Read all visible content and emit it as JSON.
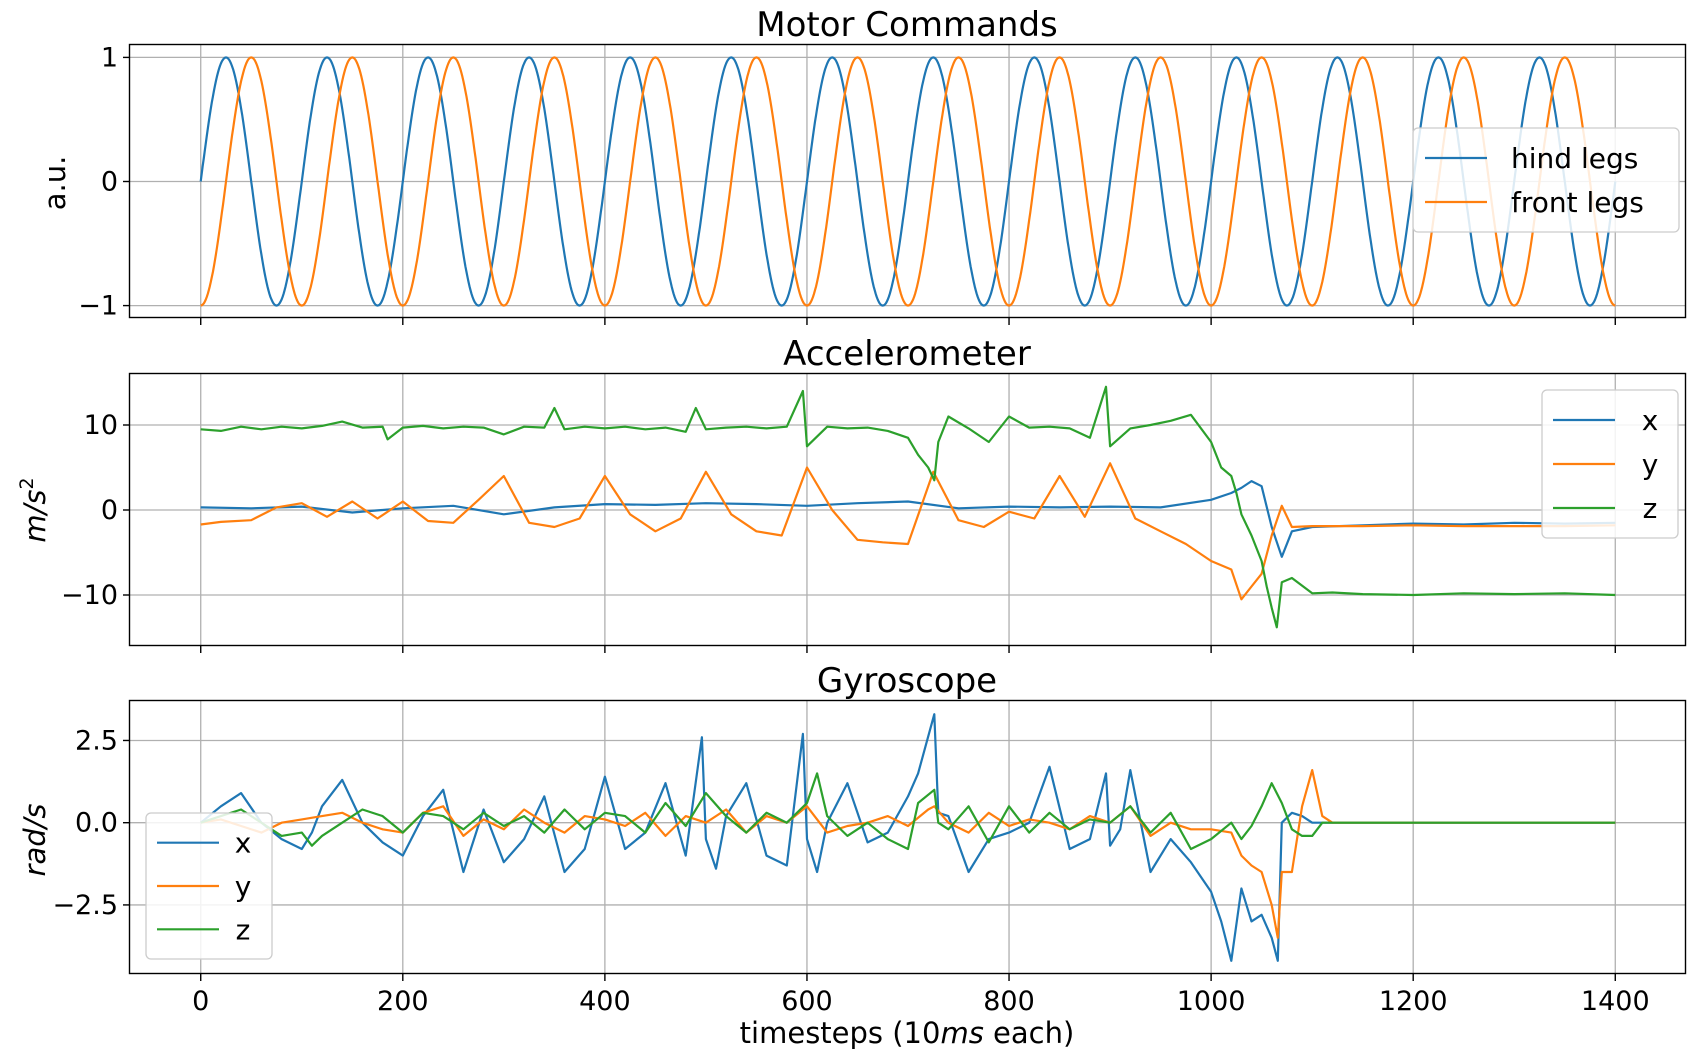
{
  "chart_data": [
    {
      "type": "line",
      "title": "Motor Commands",
      "ylabel": "a.u.",
      "ylim": [
        -1.1,
        1.1
      ],
      "xlim": [
        -70,
        1470
      ],
      "yticks": [
        -1,
        0,
        1
      ],
      "ytick_labels": [
        "−1",
        "0",
        "1"
      ],
      "grid": true,
      "legend": "right",
      "series_def": [
        {
          "name": "hind legs",
          "function": "sin",
          "amplitude": 1,
          "period": 100,
          "phase_shift": 0,
          "x_range": [
            0,
            1400
          ],
          "color": "#1f77b4"
        },
        {
          "name": "front legs",
          "function": "-cos",
          "amplitude": 1,
          "period": 100,
          "phase_shift": 0,
          "x_range": [
            0,
            1400
          ],
          "color": "#ff7f0e"
        }
      ]
    },
    {
      "type": "line",
      "title": "Accelerometer",
      "ylabel_main": "m/s",
      "ylabel_sup": "2",
      "ylim": [
        -16,
        16
      ],
      "xlim": [
        -70,
        1470
      ],
      "yticks": [
        -10,
        0,
        10
      ],
      "ytick_labels": [
        "−10",
        "0",
        "10"
      ],
      "grid": true,
      "legend": "right",
      "series": [
        {
          "name": "x",
          "color": "#1f77b4",
          "x": [
            0,
            50,
            100,
            150,
            200,
            250,
            300,
            350,
            400,
            450,
            500,
            550,
            600,
            650,
            700,
            750,
            800,
            850,
            900,
            950,
            1000,
            1020,
            1030,
            1040,
            1050,
            1060,
            1070,
            1080,
            1100,
            1150,
            1200,
            1250,
            1300,
            1350,
            1400
          ],
          "y": [
            0.3,
            0.2,
            0.4,
            -0.3,
            0.2,
            0.5,
            -0.5,
            0.3,
            0.7,
            0.6,
            0.8,
            0.7,
            0.5,
            0.8,
            1.0,
            0.2,
            0.4,
            0.3,
            0.4,
            0.3,
            1.2,
            2.0,
            2.6,
            3.4,
            2.8,
            -2.0,
            -5.5,
            -2.5,
            -2.0,
            -1.8,
            -1.6,
            -1.7,
            -1.5,
            -1.6,
            -1.5
          ]
        },
        {
          "name": "y",
          "color": "#ff7f0e",
          "x": [
            0,
            20,
            50,
            75,
            100,
            125,
            150,
            175,
            200,
            225,
            250,
            275,
            300,
            325,
            350,
            375,
            400,
            425,
            450,
            475,
            500,
            525,
            550,
            575,
            600,
            625,
            650,
            675,
            700,
            725,
            750,
            775,
            800,
            825,
            850,
            875,
            900,
            925,
            950,
            975,
            1000,
            1020,
            1030,
            1040,
            1050,
            1060,
            1070,
            1080,
            1100,
            1150,
            1200,
            1250,
            1300,
            1350,
            1400
          ],
          "y": [
            -1.7,
            -1.4,
            -1.2,
            0.3,
            0.8,
            -0.8,
            1.0,
            -1.0,
            1.0,
            -1.3,
            -1.5,
            1.2,
            4.0,
            -1.5,
            -2.0,
            -1.0,
            4.0,
            -0.5,
            -2.5,
            -1.0,
            4.5,
            -0.5,
            -2.5,
            -3.0,
            5.0,
            0.0,
            -3.5,
            -3.8,
            -4.0,
            4.5,
            -1.2,
            -2.0,
            -0.2,
            -1.0,
            4.0,
            -0.8,
            5.5,
            -1.0,
            -2.5,
            -4.0,
            -6.0,
            -7.0,
            -10.5,
            -9.0,
            -7.5,
            -3.0,
            0.5,
            -2.0,
            -1.9,
            -1.9,
            -1.8,
            -1.9,
            -1.9,
            -1.9,
            -1.8
          ]
        },
        {
          "name": "z",
          "color": "#2ca02c",
          "x": [
            0,
            20,
            40,
            60,
            80,
            100,
            120,
            140,
            160,
            180,
            185,
            200,
            220,
            240,
            260,
            280,
            300,
            320,
            340,
            350,
            360,
            380,
            400,
            420,
            440,
            460,
            480,
            490,
            500,
            520,
            540,
            560,
            580,
            596,
            600,
            620,
            640,
            660,
            680,
            700,
            710,
            720,
            726,
            730,
            740,
            760,
            780,
            800,
            820,
            840,
            860,
            880,
            896,
            900,
            920,
            940,
            960,
            980,
            1000,
            1010,
            1020,
            1025,
            1030,
            1040,
            1050,
            1055,
            1060,
            1065,
            1070,
            1080,
            1100,
            1120,
            1150,
            1200,
            1250,
            1300,
            1350,
            1400
          ],
          "y": [
            9.5,
            9.3,
            9.8,
            9.5,
            9.8,
            9.6,
            9.9,
            10.4,
            9.7,
            9.8,
            8.3,
            9.7,
            9.9,
            9.6,
            9.8,
            9.7,
            8.9,
            9.8,
            9.7,
            12.0,
            9.5,
            9.8,
            9.6,
            9.8,
            9.5,
            9.7,
            9.2,
            12.0,
            9.5,
            9.7,
            9.8,
            9.6,
            9.8,
            14.0,
            7.5,
            9.8,
            9.6,
            9.7,
            9.3,
            8.5,
            6.5,
            5.0,
            3.5,
            8.0,
            11.0,
            9.6,
            8.0,
            11.0,
            9.7,
            9.8,
            9.6,
            8.5,
            14.5,
            7.5,
            9.6,
            10.0,
            10.5,
            11.2,
            8.0,
            5.0,
            4.0,
            2.0,
            -0.5,
            -3.0,
            -6.0,
            -9.0,
            -11.5,
            -13.8,
            -8.5,
            -8.0,
            -9.8,
            -9.7,
            -9.9,
            -10.0,
            -9.8,
            -9.9,
            -9.8,
            -10.0
          ]
        }
      ]
    },
    {
      "type": "line",
      "title": "Gyroscope",
      "ylabel": "rad/s",
      "ylim": [
        -4.6,
        3.7
      ],
      "xlim": [
        -70,
        1470
      ],
      "xticks": [
        0,
        200,
        400,
        600,
        800,
        1000,
        1200,
        1400
      ],
      "xtick_labels": [
        "0",
        "200",
        "400",
        "600",
        "800",
        "1000",
        "1200",
        "1400"
      ],
      "yticks": [
        -2.5,
        0.0,
        2.5
      ],
      "ytick_labels": [
        "−2.5",
        "0.0",
        "2.5"
      ],
      "xlabel_pre": "timesteps (10",
      "xlabel_it": "ms",
      "xlabel_post": " each)",
      "grid": true,
      "legend": "bottom-left",
      "series": [
        {
          "name": "x",
          "color": "#1f77b4",
          "x": [
            0,
            20,
            40,
            60,
            80,
            100,
            110,
            120,
            140,
            160,
            180,
            200,
            220,
            240,
            260,
            280,
            300,
            320,
            340,
            360,
            380,
            400,
            420,
            440,
            460,
            480,
            496,
            500,
            510,
            520,
            540,
            560,
            580,
            596,
            600,
            610,
            620,
            640,
            660,
            680,
            700,
            710,
            726,
            730,
            740,
            760,
            780,
            800,
            820,
            840,
            860,
            880,
            896,
            900,
            910,
            920,
            940,
            960,
            980,
            1000,
            1010,
            1020,
            1030,
            1040,
            1050,
            1060,
            1066,
            1070,
            1080,
            1090,
            1100,
            1120,
            1150,
            1200,
            1250,
            1300,
            1350,
            1400
          ],
          "y": [
            0.0,
            0.5,
            0.9,
            0.0,
            -0.5,
            -0.8,
            -0.3,
            0.5,
            1.3,
            0.0,
            -0.6,
            -1.0,
            0.2,
            1.0,
            -1.5,
            0.4,
            -1.2,
            -0.5,
            0.8,
            -1.5,
            -0.8,
            1.4,
            -0.8,
            -0.3,
            1.2,
            -1.0,
            2.6,
            -0.5,
            -1.4,
            0.2,
            1.2,
            -1.0,
            -1.3,
            2.7,
            -0.5,
            -1.5,
            0.0,
            1.2,
            -0.6,
            -0.3,
            0.8,
            1.5,
            3.3,
            0.3,
            0.2,
            -1.5,
            -0.5,
            -0.3,
            0.0,
            1.7,
            -0.8,
            -0.5,
            1.5,
            -0.7,
            -0.2,
            1.6,
            -1.5,
            -0.5,
            -1.2,
            -2.1,
            -3.0,
            -4.2,
            -2.0,
            -3.0,
            -2.8,
            -3.5,
            -4.2,
            0.0,
            0.3,
            0.2,
            0.0,
            0.0,
            0.0,
            0.0,
            0.0,
            0.0,
            0.0,
            0.0
          ]
        },
        {
          "name": "y",
          "color": "#ff7f0e",
          "x": [
            0,
            20,
            40,
            60,
            80,
            100,
            120,
            140,
            160,
            180,
            200,
            220,
            240,
            260,
            280,
            300,
            320,
            340,
            360,
            380,
            400,
            420,
            440,
            460,
            480,
            500,
            520,
            540,
            560,
            580,
            600,
            620,
            640,
            660,
            680,
            700,
            720,
            726,
            740,
            760,
            780,
            800,
            820,
            840,
            860,
            880,
            900,
            920,
            940,
            960,
            980,
            1000,
            1020,
            1030,
            1040,
            1050,
            1060,
            1066,
            1070,
            1080,
            1090,
            1100,
            1110,
            1120,
            1140,
            1200,
            1250,
            1300,
            1350,
            1400
          ],
          "y": [
            0.0,
            0.1,
            -0.1,
            -0.3,
            0.0,
            0.1,
            0.2,
            0.3,
            0.0,
            -0.2,
            -0.3,
            0.3,
            0.5,
            -0.4,
            0.1,
            -0.2,
            0.4,
            0.0,
            -0.3,
            0.2,
            0.1,
            -0.1,
            0.3,
            -0.4,
            0.2,
            0.0,
            0.4,
            -0.3,
            0.2,
            0.0,
            0.5,
            -0.3,
            -0.1,
            0.0,
            0.2,
            -0.1,
            0.4,
            0.5,
            0.0,
            -0.3,
            0.3,
            -0.1,
            0.1,
            0.0,
            -0.2,
            0.2,
            0.0,
            0.5,
            -0.4,
            0.0,
            -0.2,
            -0.2,
            -0.3,
            -1.0,
            -1.3,
            -1.5,
            -2.5,
            -3.5,
            -1.5,
            -1.5,
            0.5,
            1.6,
            0.2,
            0.0,
            0.0,
            0.0,
            0.0,
            0.0,
            0.0,
            0.0
          ]
        },
        {
          "name": "z",
          "color": "#2ca02c",
          "x": [
            0,
            20,
            40,
            60,
            80,
            100,
            110,
            120,
            140,
            160,
            180,
            200,
            220,
            240,
            260,
            280,
            300,
            320,
            340,
            360,
            380,
            400,
            420,
            440,
            460,
            480,
            500,
            520,
            540,
            560,
            580,
            600,
            610,
            620,
            640,
            660,
            680,
            700,
            710,
            726,
            730,
            740,
            760,
            780,
            800,
            820,
            840,
            860,
            880,
            900,
            920,
            940,
            960,
            980,
            1000,
            1020,
            1030,
            1040,
            1050,
            1060,
            1070,
            1080,
            1090,
            1100,
            1110,
            1120,
            1140,
            1200,
            1250,
            1300,
            1350,
            1400
          ],
          "y": [
            0.0,
            0.2,
            0.4,
            0.0,
            -0.4,
            -0.3,
            -0.7,
            -0.4,
            0.0,
            0.4,
            0.2,
            -0.3,
            0.3,
            0.2,
            -0.2,
            0.3,
            -0.1,
            0.2,
            -0.3,
            0.4,
            -0.2,
            0.3,
            0.2,
            -0.3,
            0.6,
            -0.1,
            0.9,
            0.2,
            -0.3,
            0.3,
            0.0,
            0.6,
            1.5,
            0.2,
            -0.4,
            0.0,
            -0.5,
            -0.8,
            0.6,
            1.0,
            0.0,
            -0.2,
            0.5,
            -0.6,
            0.5,
            -0.3,
            0.3,
            -0.2,
            0.1,
            0.0,
            0.5,
            -0.3,
            0.3,
            -0.8,
            -0.5,
            0.0,
            -0.5,
            -0.1,
            0.5,
            1.2,
            0.6,
            -0.2,
            -0.4,
            -0.4,
            0.0,
            0.0,
            0.0,
            0.0,
            0.0,
            0.0,
            0.0,
            0.0
          ]
        }
      ]
    }
  ]
}
